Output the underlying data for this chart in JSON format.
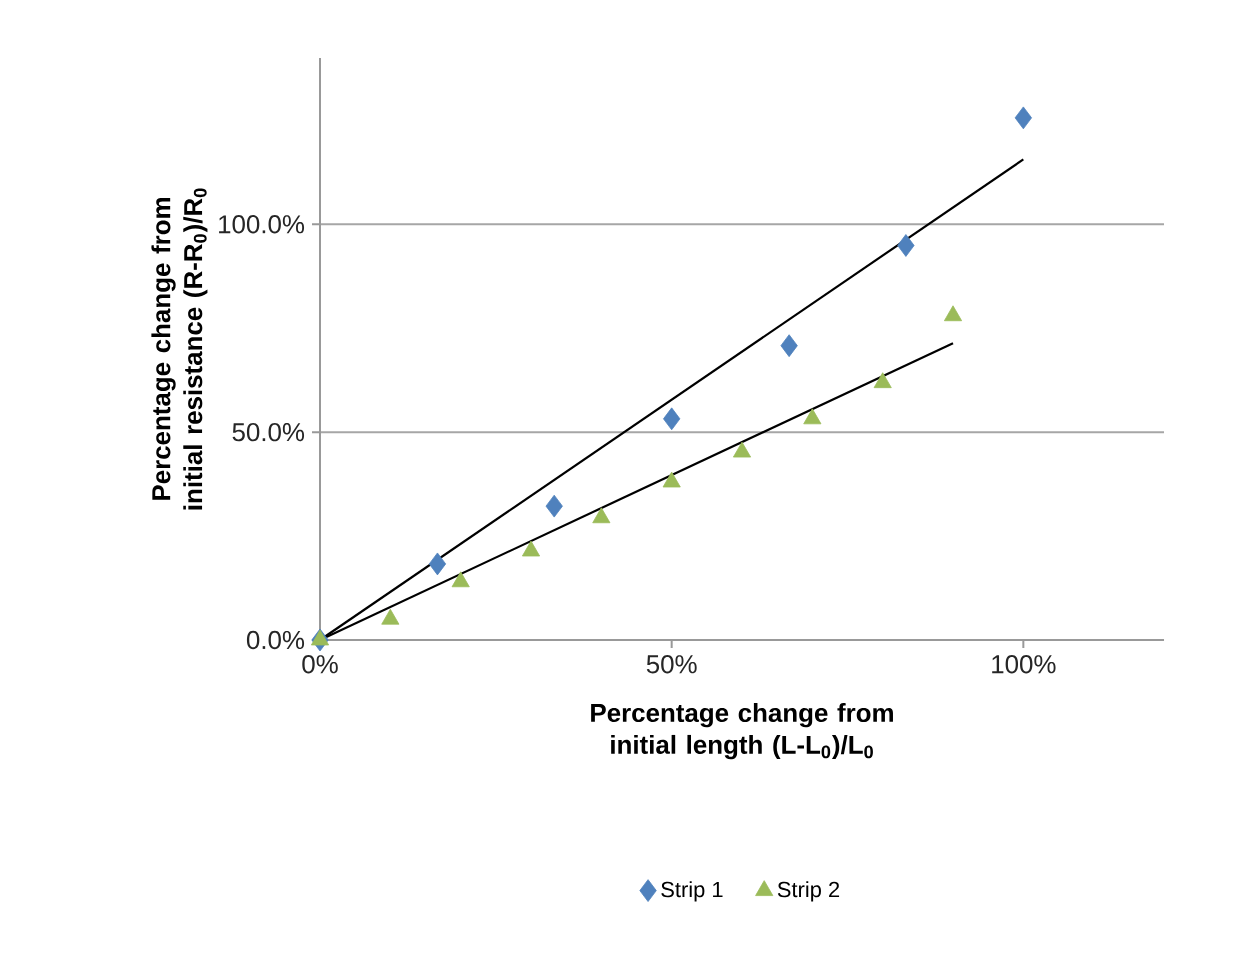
{
  "chart_data": {
    "type": "scatter",
    "xlabel": "Percentage change from initial length (L-L$_{0}$)/L$_{0}$",
    "ylabel": "Percentage change from initial resistance (R-R$_{0}$)/R$_{0}$",
    "xlim": [
      0,
      120
    ],
    "ylim": [
      0,
      140
    ],
    "xticks": [
      {
        "value": 0,
        "label": "0%"
      },
      {
        "value": 50,
        "label": "50%"
      },
      {
        "value": 100,
        "label": "100%"
      }
    ],
    "yticks": [
      {
        "value": 0,
        "label": "0.0%"
      },
      {
        "value": 50,
        "label": "50.0%"
      },
      {
        "value": 100,
        "label": "100.0%"
      }
    ],
    "grid": "y",
    "legend": "bottom",
    "series": [
      {
        "name": "Strip 1",
        "marker": "diamond",
        "color": "#4f81bd",
        "x": [
          0,
          16.7,
          33.3,
          50,
          66.7,
          83.3,
          100
        ],
        "values": [
          0,
          18.3,
          32.2,
          53.2,
          70.8,
          94.9,
          125.6
        ]
      },
      {
        "name": "Strip 2",
        "marker": "triangle",
        "color": "#9bbb59",
        "x": [
          0,
          10,
          20,
          30,
          40,
          50,
          60,
          70,
          80,
          90
        ],
        "values": [
          0,
          5,
          14,
          21.4,
          29.4,
          38,
          45.2,
          53.2,
          61.9,
          78
        ]
      },
      {
        "type": "line",
        "marker": "none",
        "color": "#000000",
        "x": [
          0,
          100
        ],
        "values": [
          0,
          115.6
        ]
      },
      {
        "type": "line",
        "marker": "none",
        "color": "#000000",
        "x": [
          0,
          90
        ],
        "values": [
          0,
          71.4
        ]
      }
    ]
  }
}
